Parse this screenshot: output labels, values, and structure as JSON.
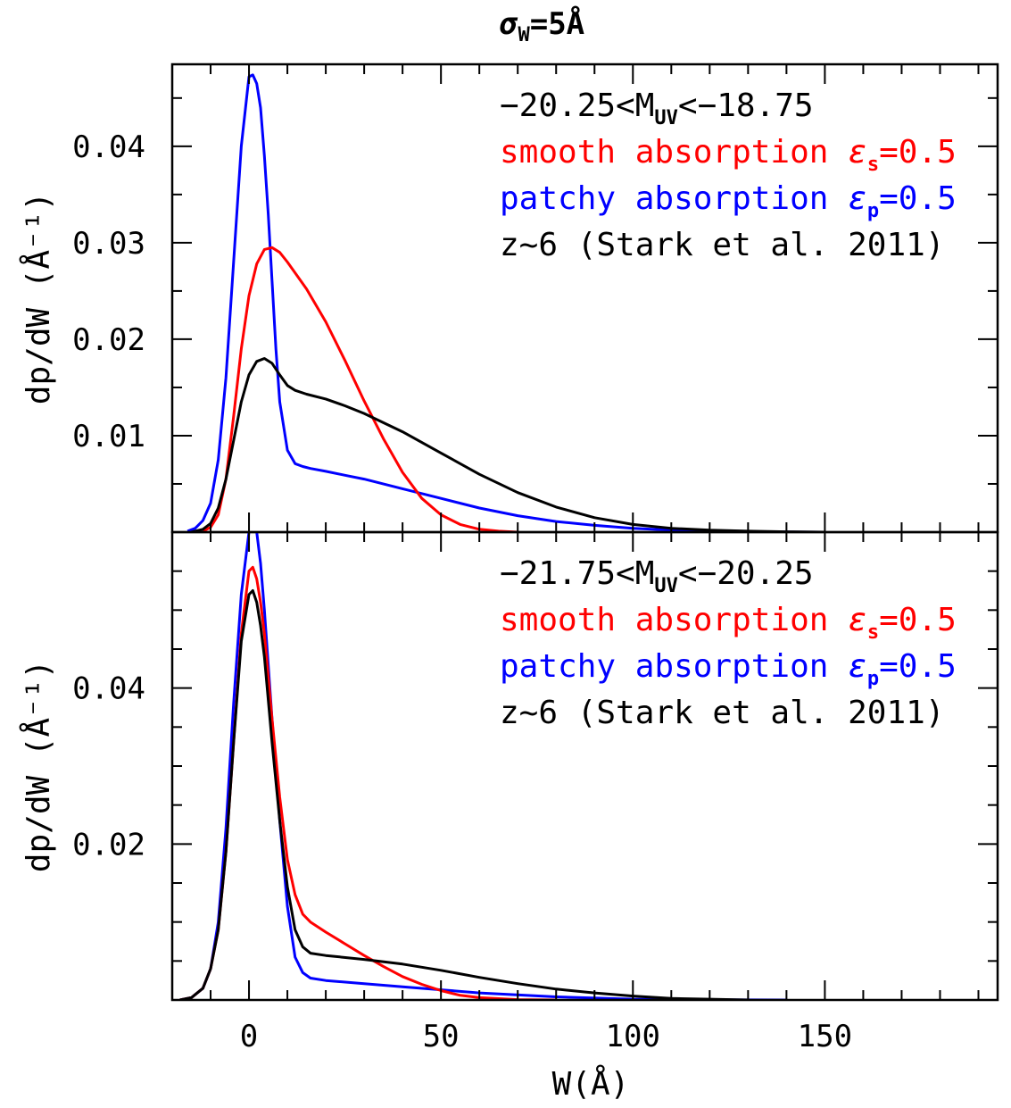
{
  "figure_title": {
    "sigma": "σ",
    "sub": "W",
    "rest": "=5Å"
  },
  "colors": {
    "red": "#ff0000",
    "blue": "#0000ff",
    "black": "#000000"
  },
  "chart_data": [
    {
      "type": "line",
      "panel": "top",
      "xlabel": "",
      "ylabel": "dp/dW (Å⁻¹)",
      "xlim": [
        -20,
        195
      ],
      "ylim": [
        0,
        0.0485
      ],
      "yticks": [
        0.01,
        0.02,
        0.03,
        0.04
      ],
      "ytick_labels": [
        "0.01",
        "0.02",
        "0.03",
        "0.04"
      ],
      "xticks": [
        0,
        50,
        100,
        150
      ],
      "xtick_labels": [],
      "legend": {
        "header": {
          "pre": "−20.25<M",
          "sub": "UV",
          "post": "<−18.75"
        },
        "entries": [
          {
            "text": "smooth absorption ",
            "greek": "ε",
            "sub": "s",
            "post": "=0.5",
            "color": "#ff0000"
          },
          {
            "text": "patchy absorption ",
            "greek": "ε",
            "sub": "p",
            "post": "=0.5",
            "color": "#0000ff"
          },
          {
            "text": "z~6 (Stark et al. 2011)",
            "greek": "",
            "sub": "",
            "post": "",
            "color": "#000000"
          }
        ],
        "position": "top-right"
      },
      "series": [
        {
          "color": "#0000ff",
          "x": [
            -16,
            -14,
            -12,
            -10,
            -8,
            -6,
            -4,
            -2,
            0,
            1,
            2,
            3,
            4,
            5,
            6,
            7,
            8,
            10,
            12,
            14,
            16,
            20,
            25,
            30,
            40,
            50,
            60,
            70,
            80,
            90,
            100,
            110,
            120,
            130,
            140,
            150
          ],
          "y": [
            0.0001,
            0.0004,
            0.0012,
            0.003,
            0.0075,
            0.016,
            0.028,
            0.04,
            0.0472,
            0.0474,
            0.0465,
            0.044,
            0.039,
            0.033,
            0.026,
            0.019,
            0.0135,
            0.0085,
            0.0071,
            0.0068,
            0.0066,
            0.0063,
            0.0059,
            0.0055,
            0.0045,
            0.0035,
            0.0025,
            0.0017,
            0.0011,
            0.0007,
            0.0004,
            0.0002,
            0.0001,
            5e-05,
            2e-05,
            0.0
          ]
        },
        {
          "color": "#ff0000",
          "x": [
            -12,
            -10,
            -8,
            -6,
            -4,
            -2,
            0,
            2,
            4,
            6,
            8,
            10,
            15,
            20,
            25,
            30,
            35,
            40,
            45,
            50,
            55,
            60,
            65,
            70
          ],
          "y": [
            0.0001,
            0.0005,
            0.0018,
            0.0055,
            0.012,
            0.019,
            0.0245,
            0.0278,
            0.0293,
            0.0295,
            0.029,
            0.028,
            0.0252,
            0.0218,
            0.0178,
            0.0136,
            0.0097,
            0.0062,
            0.0035,
            0.0018,
            0.0008,
            0.0003,
            0.0001,
            0.0
          ]
        },
        {
          "color": "#000000",
          "x": [
            -15,
            -12,
            -10,
            -8,
            -6,
            -4,
            -2,
            0,
            2,
            4,
            6,
            8,
            10,
            12,
            15,
            20,
            25,
            30,
            40,
            50,
            60,
            70,
            80,
            90,
            100,
            110,
            120,
            130,
            140,
            150
          ],
          "y": [
            0.0,
            0.0003,
            0.0009,
            0.0025,
            0.0055,
            0.0095,
            0.0135,
            0.0163,
            0.0177,
            0.018,
            0.0175,
            0.0163,
            0.0152,
            0.0147,
            0.0143,
            0.0138,
            0.0131,
            0.0123,
            0.0104,
            0.0082,
            0.006,
            0.0041,
            0.0026,
            0.0015,
            0.0008,
            0.0004,
            0.0002,
            0.0001,
            4e-05,
            0.0
          ]
        }
      ]
    },
    {
      "type": "line",
      "panel": "bottom",
      "xlabel": "W(Å)",
      "ylabel": "dp/dW (Å⁻¹)",
      "xlim": [
        -20,
        195
      ],
      "ylim": [
        0,
        0.06
      ],
      "yticks": [
        0.02,
        0.04
      ],
      "ytick_labels": [
        "0.02",
        "0.04"
      ],
      "xticks": [
        0,
        50,
        100,
        150
      ],
      "xtick_labels": [
        "0",
        "50",
        "100",
        "150"
      ],
      "legend": {
        "header": {
          "pre": "−21.75<M",
          "sub": "UV",
          "post": "<−20.25"
        },
        "entries": [
          {
            "text": "smooth absorption ",
            "greek": "ε",
            "sub": "s",
            "post": "=0.5",
            "color": "#ff0000"
          },
          {
            "text": "patchy absorption ",
            "greek": "ε",
            "sub": "p",
            "post": "=0.5",
            "color": "#0000ff"
          },
          {
            "text": "z~6 (Stark et al. 2011)",
            "greek": "",
            "sub": "",
            "post": "",
            "color": "#000000"
          }
        ],
        "position": "top-right"
      },
      "series": [
        {
          "color": "#0000ff",
          "x": [
            -18,
            -15,
            -12,
            -10,
            -8,
            -6,
            -4,
            -2,
            0,
            1,
            2,
            3,
            4,
            6,
            8,
            10,
            12,
            14,
            16,
            20,
            30,
            40,
            50,
            60,
            80,
            100,
            120,
            140
          ],
          "y": [
            0.0,
            0.0003,
            0.0015,
            0.004,
            0.01,
            0.022,
            0.038,
            0.052,
            0.06,
            0.062,
            0.06,
            0.056,
            0.05,
            0.036,
            0.023,
            0.012,
            0.0055,
            0.0035,
            0.0028,
            0.0025,
            0.0021,
            0.0017,
            0.0013,
            0.0009,
            0.0004,
            0.0001,
            3e-05,
            0.0
          ]
        },
        {
          "color": "#ff0000",
          "x": [
            -18,
            -15,
            -12,
            -10,
            -8,
            -6,
            -4,
            -2,
            0,
            1,
            2,
            3,
            4,
            6,
            8,
            10,
            12,
            14,
            16,
            20,
            25,
            30,
            35,
            40,
            45,
            50,
            55,
            60,
            70,
            80
          ],
          "y": [
            0.0,
            0.0003,
            0.0015,
            0.004,
            0.009,
            0.019,
            0.033,
            0.047,
            0.055,
            0.0555,
            0.054,
            0.051,
            0.047,
            0.036,
            0.026,
            0.018,
            0.0135,
            0.011,
            0.01,
            0.0087,
            0.0072,
            0.0057,
            0.0043,
            0.003,
            0.002,
            0.0012,
            0.0006,
            0.0003,
            5e-05,
            0.0
          ]
        },
        {
          "color": "#000000",
          "x": [
            -18,
            -15,
            -12,
            -10,
            -8,
            -6,
            -4,
            -2,
            0,
            1,
            2,
            3,
            4,
            6,
            8,
            10,
            12,
            14,
            16,
            20,
            30,
            40,
            50,
            60,
            70,
            80,
            90,
            100,
            110,
            120,
            130
          ],
          "y": [
            0.0,
            0.0003,
            0.0015,
            0.004,
            0.009,
            0.019,
            0.033,
            0.046,
            0.052,
            0.0525,
            0.051,
            0.048,
            0.044,
            0.033,
            0.023,
            0.0145,
            0.009,
            0.0068,
            0.006,
            0.0057,
            0.0052,
            0.0046,
            0.0038,
            0.0029,
            0.0021,
            0.0014,
            0.0009,
            0.0005,
            0.0002,
            0.0001,
            0.0
          ]
        }
      ]
    }
  ]
}
